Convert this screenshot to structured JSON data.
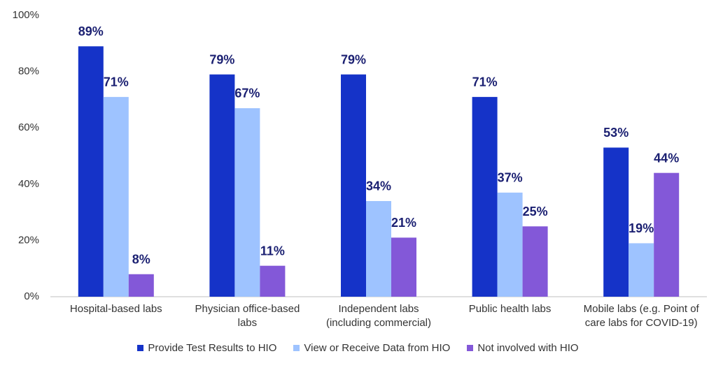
{
  "chart_data": {
    "type": "bar",
    "categories": [
      "Hospital-based labs",
      "Physician office-based labs",
      "Independent labs (including commercial)",
      "Public health labs",
      "Mobile labs (e.g. Point of care labs for COVID-19)"
    ],
    "series": [
      {
        "name": "Provide Test Results to HIO",
        "color": "#1533c8",
        "values": [
          89,
          79,
          79,
          71,
          53
        ],
        "value_labels": [
          "89%",
          "79%",
          "79%",
          "71%",
          "53%"
        ]
      },
      {
        "name": "View or Receive Data from HIO",
        "color": "#9ec3ff",
        "values": [
          71,
          67,
          34,
          37,
          19
        ],
        "value_labels": [
          "71%",
          "67%",
          "34%",
          "37%",
          "19%"
        ]
      },
      {
        "name": "Not involved with HIO",
        "color": "#8358d8",
        "values": [
          8,
          11,
          21,
          25,
          44
        ],
        "value_labels": [
          "8%",
          "11%",
          "21%",
          "25%",
          "44%"
        ]
      }
    ],
    "ylim": [
      0,
      100
    ],
    "yticks": [
      {
        "value": 0,
        "label": "0%"
      },
      {
        "value": 20,
        "label": "20%"
      },
      {
        "value": 40,
        "label": "40%"
      },
      {
        "value": 60,
        "label": "60%"
      },
      {
        "value": 80,
        "label": "80%"
      },
      {
        "value": 100,
        "label": "100%"
      }
    ],
    "grid": false,
    "legend": "bottom"
  }
}
